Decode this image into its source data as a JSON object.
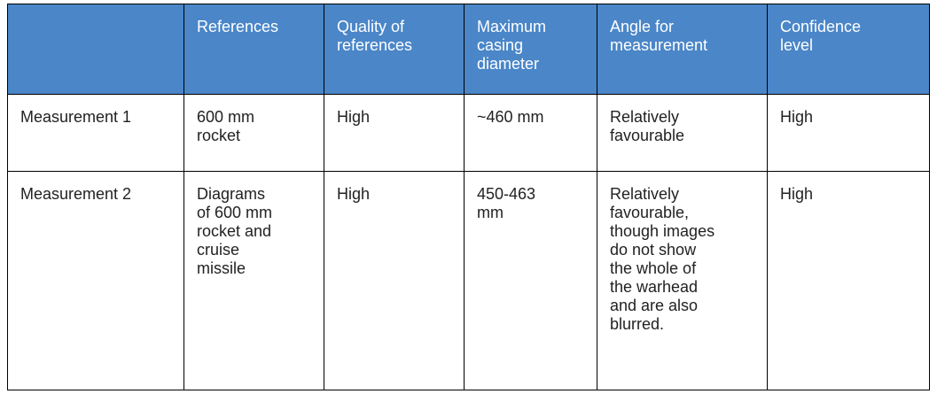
{
  "table": {
    "header": [
      [],
      [
        "References"
      ],
      [
        "Quality of",
        "references"
      ],
      [
        "Maximum",
        "casing",
        "diameter"
      ],
      [
        "Angle for",
        "measurement"
      ],
      [
        "Confidence",
        "level"
      ]
    ],
    "rows": [
      [
        [
          "Measurement 1"
        ],
        [
          "600 mm",
          "rocket"
        ],
        [
          "High"
        ],
        [
          "~460 mm"
        ],
        [
          "Relatively",
          "favourable"
        ],
        [
          "High"
        ]
      ],
      [
        [
          "Measurement 2"
        ],
        [
          "Diagrams",
          "of 600 mm",
          "rocket and",
          "cruise",
          "missile"
        ],
        [
          "High"
        ],
        [
          "450-463",
          "mm"
        ],
        [
          "Relatively",
          "favourable,",
          "though images",
          "do not show",
          "the whole of",
          "the warhead",
          "and are also",
          "blurred."
        ],
        [
          "High"
        ]
      ]
    ]
  }
}
